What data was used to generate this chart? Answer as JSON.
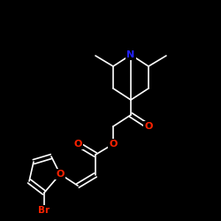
{
  "background": "#000000",
  "bond_color": "#ffffff",
  "atom_colors": {
    "N": "#2222ff",
    "O": "#ff2200",
    "Br": "#ff2200"
  },
  "figsize": [
    2.5,
    2.5
  ],
  "dpi": 100
}
